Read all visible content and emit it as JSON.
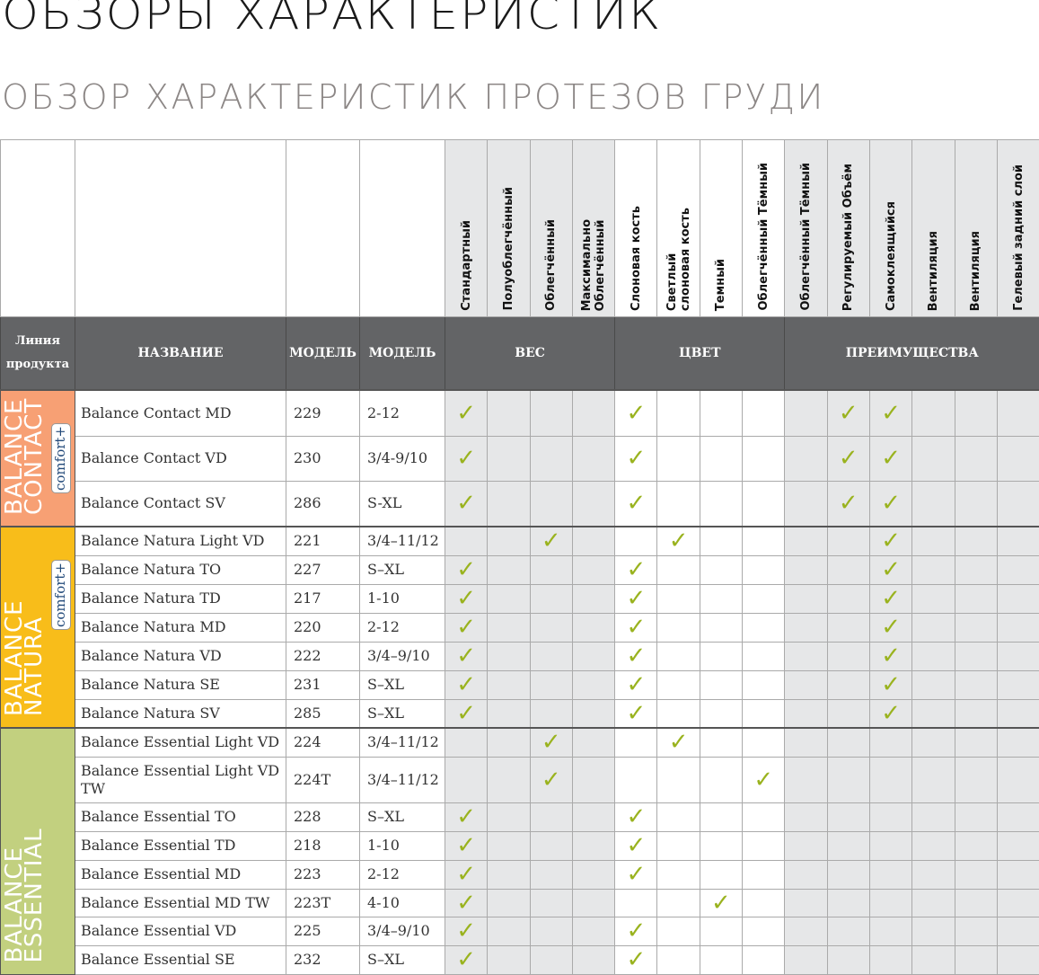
{
  "title": "ОБЗОРЫ ХАРАКТЕРИСТИК",
  "subtitle": "ОБЗОР ХАРАКТЕРИСТИК ПРОТЕЗОВ ГРУДИ",
  "colors": {
    "check": "#9ab31f",
    "header": "#636466",
    "contact": "#f7a074",
    "natura": "#f8bd1a",
    "essential": "#c2d07f",
    "shade": "#e6e7e8"
  },
  "feature_columns": [
    "Стандартный",
    "Полуоблегчённый",
    "Облегчённый",
    "Максимально Облегчённый",
    "Слоновая кость",
    "Светлый слоновая кость",
    "Темный",
    "Облегчённый Тёмный",
    "Регулируемый Объём",
    "Самоклеящийся",
    "Вентиляция",
    "Вентиляция",
    "Гелевый задний слой"
  ],
  "feature_columns_full": [
    "Стандартный",
    "Полуоблегчённый",
    "Облегчённый",
    "Максимально\nОблегчённый",
    "Слоновая кость",
    "Светлый\nслоновая кость",
    "Темный",
    "Облегчённый Тёмный",
    "Регулируемый Объём",
    "Самоклеящийся",
    "Вентиляция",
    "Вентиляция",
    "Гелевый задний слой"
  ],
  "headers": {
    "line": "Линия продукта",
    "name": "НАЗВАНИЕ",
    "model": "МОДЕЛЬ",
    "size": "МОДЕЛЬ",
    "weight": "ВЕС",
    "color": "ЦВЕТ",
    "benefits": "ПРЕИМУЩЕСТВА"
  },
  "check_icon": "checkmark-icon",
  "sections": [
    {
      "label": "BALANCE CONTACT",
      "badge": "comfort+",
      "color": "#f7a074",
      "rows": [
        {
          "name": "Balance Contact MD",
          "model": "229",
          "size": "2-12",
          "checks": [
            1,
            5,
            10,
            11
          ]
        },
        {
          "name": "Balance Contact VD",
          "model": "230",
          "size": "3/4-9/10",
          "checks": [
            1,
            5,
            10,
            11
          ]
        },
        {
          "name": "Balance Contact SV",
          "model": "286",
          "size": "S-XL",
          "checks": [
            1,
            5,
            10,
            11
          ]
        }
      ]
    },
    {
      "label": "BALANCE NATURA",
      "badge": "comfort+",
      "color": "#f8bd1a",
      "rows": [
        {
          "name": "Balance Natura Light VD",
          "model": "221",
          "size": "3/4–11/12",
          "checks": [
            3,
            6,
            11
          ]
        },
        {
          "name": "Balance Natura TO",
          "model": "227",
          "size": "S–XL",
          "checks": [
            1,
            5,
            11
          ]
        },
        {
          "name": "Balance Natura TD",
          "model": "217",
          "size": "1-10",
          "checks": [
            1,
            5,
            11
          ]
        },
        {
          "name": "Balance Natura MD",
          "model": "220",
          "size": "2-12",
          "checks": [
            1,
            5,
            11
          ]
        },
        {
          "name": "Balance Natura VD",
          "model": "222",
          "size": "3/4–9/10",
          "checks": [
            1,
            5,
            11
          ]
        },
        {
          "name": "Balance Natura SE",
          "model": "231",
          "size": "S–XL",
          "checks": [
            1,
            5,
            11
          ]
        },
        {
          "name": "Balance Natura SV",
          "model": "285",
          "size": "S–XL",
          "checks": [
            1,
            5,
            11
          ]
        }
      ]
    },
    {
      "label": "BALANCE ESSENTIAL",
      "badge": "",
      "color": "#c2d07f",
      "rows": [
        {
          "name": "Balance Essential Light VD",
          "model": "224",
          "size": "3/4–11/12",
          "checks": [
            3,
            6
          ]
        },
        {
          "name": "Balance Essential Light VD TW",
          "model": "224T",
          "size": "3/4–11/12",
          "checks": [
            3,
            8
          ]
        },
        {
          "name": "Balance Essential TO",
          "model": "228",
          "size": "S–XL",
          "checks": [
            1,
            5
          ]
        },
        {
          "name": "Balance Essential TD",
          "model": "218",
          "size": "1-10",
          "checks": [
            1,
            5
          ]
        },
        {
          "name": "Balance Essential MD",
          "model": "223",
          "size": "2-12",
          "checks": [
            1,
            5
          ]
        },
        {
          "name": "Balance Essential MD TW",
          "model": "223T",
          "size": "4-10",
          "checks": [
            1,
            7
          ]
        },
        {
          "name": "Balance Essential VD",
          "model": "225",
          "size": "3/4–9/10",
          "checks": [
            1,
            5
          ]
        },
        {
          "name": "Balance Essential SE",
          "model": "232",
          "size": "S–XL",
          "checks": [
            1,
            5
          ]
        }
      ]
    }
  ]
}
